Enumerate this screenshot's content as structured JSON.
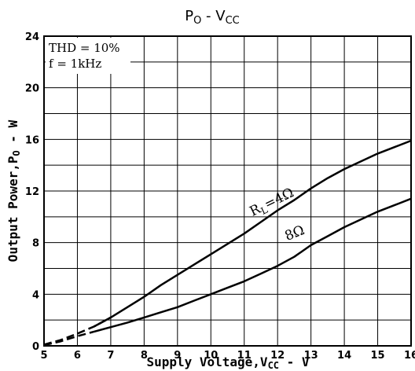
{
  "chart_data": {
    "type": "line",
    "title": "P",
    "title_sub": "O",
    "title_mid": " - V",
    "title_sub2": "CC",
    "xlabel_pre": "Supply Voltage,V",
    "xlabel_sub": "CC",
    "xlabel_post": " - V",
    "ylabel_pre": "Output Power,P",
    "ylabel_sub": "O",
    "ylabel_post": " - W",
    "xlim": [
      5,
      16
    ],
    "ylim": [
      0,
      24
    ],
    "xticks": [
      "5",
      "6",
      "7",
      "8",
      "9",
      "10",
      "11",
      "12",
      "13",
      "14",
      "15",
      "16"
    ],
    "yticks": [
      "0",
      "4",
      "8",
      "12",
      "16",
      "20",
      "24"
    ],
    "grid": true,
    "conditions": [
      "THD = 10%",
      "f = 1kHz"
    ],
    "series": [
      {
        "name": "R_L = 4Ω",
        "label_main": "R",
        "label_sub": "L",
        "label_tail": "=4Ω",
        "dashed_to_x": 7,
        "x": [
          5,
          5.5,
          6,
          6.5,
          7,
          7.5,
          8,
          8.5,
          9,
          9.5,
          10,
          10.5,
          11,
          11.5,
          12,
          12.5,
          13,
          13.5,
          14,
          14.5,
          15,
          15.5,
          16
        ],
        "y": [
          0.1,
          0.45,
          0.95,
          1.5,
          2.2,
          3.0,
          3.8,
          4.7,
          5.5,
          6.3,
          7.1,
          7.9,
          8.7,
          9.6,
          10.5,
          11.3,
          12.2,
          13.0,
          13.7,
          14.3,
          14.9,
          15.4,
          15.9
        ]
      },
      {
        "name": "8Ω",
        "label_main": "8Ω",
        "dashed_to_x": 6.7,
        "x": [
          5,
          5.5,
          6,
          6.5,
          7,
          7.5,
          8,
          8.5,
          9,
          9.5,
          10,
          10.5,
          11,
          11.5,
          12,
          12.5,
          13,
          13.5,
          14,
          14.5,
          15,
          15.5,
          16
        ],
        "y": [
          0.05,
          0.35,
          0.75,
          1.1,
          1.45,
          1.8,
          2.2,
          2.6,
          3.0,
          3.5,
          4.0,
          4.5,
          5.0,
          5.6,
          6.2,
          6.9,
          7.8,
          8.5,
          9.2,
          9.8,
          10.4,
          10.9,
          11.4
        ]
      }
    ]
  }
}
